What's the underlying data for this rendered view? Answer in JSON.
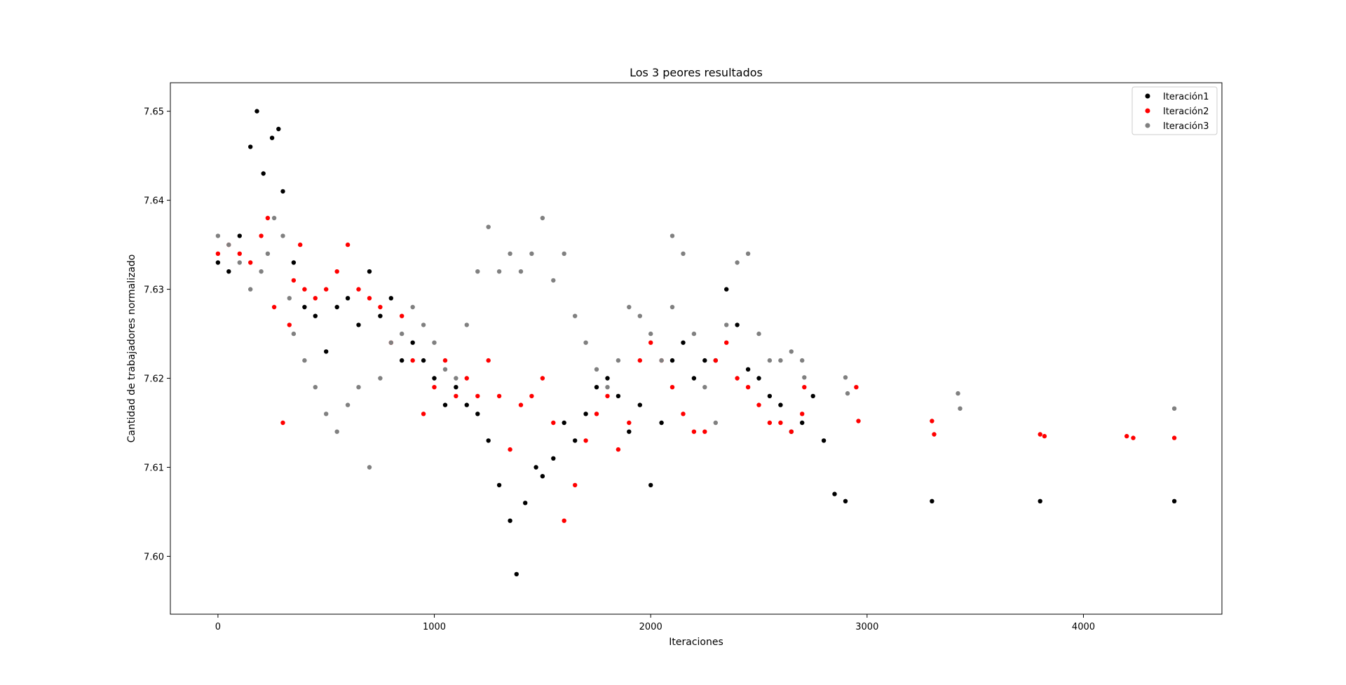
{
  "chart_data": {
    "type": "scatter",
    "title": "Los 3 peores resultados",
    "xlabel": "Iteraciones",
    "ylabel": "Cantidad de trabajadores normalizado",
    "xlim": [
      -220,
      4640
    ],
    "ylim": [
      7.5935,
      7.6532
    ],
    "xticks": [
      0,
      1000,
      2000,
      3000,
      4000
    ],
    "yticks": [
      7.6,
      7.61,
      7.62,
      7.63,
      7.64,
      7.65
    ],
    "xtick_labels": [
      "0",
      "1000",
      "2000",
      "3000",
      "4000"
    ],
    "ytick_labels": [
      "7.60",
      "7.61",
      "7.62",
      "7.63",
      "7.64",
      "7.65"
    ],
    "legend_position": "upper right",
    "grid": false,
    "series": [
      {
        "name": "Iteración1",
        "color": "#000000",
        "points": [
          [
            0,
            7.633
          ],
          [
            50,
            7.632
          ],
          [
            100,
            7.636
          ],
          [
            150,
            7.646
          ],
          [
            180,
            7.65
          ],
          [
            210,
            7.643
          ],
          [
            250,
            7.647
          ],
          [
            280,
            7.648
          ],
          [
            300,
            7.641
          ],
          [
            350,
            7.633
          ],
          [
            400,
            7.628
          ],
          [
            450,
            7.627
          ],
          [
            500,
            7.623
          ],
          [
            550,
            7.628
          ],
          [
            600,
            7.629
          ],
          [
            650,
            7.626
          ],
          [
            700,
            7.632
          ],
          [
            750,
            7.627
          ],
          [
            800,
            7.629
          ],
          [
            850,
            7.622
          ],
          [
            900,
            7.624
          ],
          [
            950,
            7.622
          ],
          [
            1000,
            7.62
          ],
          [
            1050,
            7.617
          ],
          [
            1100,
            7.619
          ],
          [
            1150,
            7.617
          ],
          [
            1200,
            7.616
          ],
          [
            1250,
            7.613
          ],
          [
            1300,
            7.608
          ],
          [
            1350,
            7.604
          ],
          [
            1380,
            7.598
          ],
          [
            1420,
            7.606
          ],
          [
            1470,
            7.61
          ],
          [
            1500,
            7.609
          ],
          [
            1550,
            7.611
          ],
          [
            1600,
            7.615
          ],
          [
            1650,
            7.613
          ],
          [
            1700,
            7.616
          ],
          [
            1750,
            7.619
          ],
          [
            1800,
            7.62
          ],
          [
            1850,
            7.618
          ],
          [
            1900,
            7.614
          ],
          [
            1950,
            7.617
          ],
          [
            2000,
            7.608
          ],
          [
            2050,
            7.615
          ],
          [
            2100,
            7.622
          ],
          [
            2150,
            7.624
          ],
          [
            2200,
            7.62
          ],
          [
            2250,
            7.622
          ],
          [
            2300,
            7.622
          ],
          [
            2350,
            7.63
          ],
          [
            2400,
            7.626
          ],
          [
            2450,
            7.621
          ],
          [
            2500,
            7.62
          ],
          [
            2550,
            7.618
          ],
          [
            2600,
            7.617
          ],
          [
            2650,
            7.614
          ],
          [
            2700,
            7.615
          ],
          [
            2750,
            7.618
          ],
          [
            2800,
            7.613
          ],
          [
            2850,
            7.607
          ],
          [
            2900,
            7.6062
          ],
          [
            3300,
            7.6062
          ],
          [
            3800,
            7.6062
          ],
          [
            4420,
            7.6062
          ]
        ]
      },
      {
        "name": "Iteración2",
        "color": "#ff0000",
        "points": [
          [
            0,
            7.634
          ],
          [
            50,
            7.635
          ],
          [
            100,
            7.634
          ],
          [
            150,
            7.633
          ],
          [
            200,
            7.636
          ],
          [
            230,
            7.638
          ],
          [
            260,
            7.628
          ],
          [
            300,
            7.615
          ],
          [
            330,
            7.626
          ],
          [
            350,
            7.631
          ],
          [
            380,
            7.635
          ],
          [
            400,
            7.63
          ],
          [
            450,
            7.629
          ],
          [
            500,
            7.63
          ],
          [
            550,
            7.632
          ],
          [
            600,
            7.635
          ],
          [
            650,
            7.63
          ],
          [
            700,
            7.629
          ],
          [
            750,
            7.628
          ],
          [
            800,
            7.624
          ],
          [
            850,
            7.627
          ],
          [
            900,
            7.622
          ],
          [
            950,
            7.616
          ],
          [
            1000,
            7.619
          ],
          [
            1050,
            7.622
          ],
          [
            1100,
            7.618
          ],
          [
            1150,
            7.62
          ],
          [
            1200,
            7.618
          ],
          [
            1250,
            7.622
          ],
          [
            1300,
            7.618
          ],
          [
            1350,
            7.612
          ],
          [
            1400,
            7.617
          ],
          [
            1450,
            7.618
          ],
          [
            1500,
            7.62
          ],
          [
            1550,
            7.615
          ],
          [
            1600,
            7.604
          ],
          [
            1650,
            7.608
          ],
          [
            1700,
            7.613
          ],
          [
            1750,
            7.616
          ],
          [
            1800,
            7.618
          ],
          [
            1850,
            7.612
          ],
          [
            1900,
            7.615
          ],
          [
            1950,
            7.622
          ],
          [
            2000,
            7.624
          ],
          [
            2050,
            7.622
          ],
          [
            2100,
            7.619
          ],
          [
            2150,
            7.616
          ],
          [
            2200,
            7.614
          ],
          [
            2250,
            7.614
          ],
          [
            2300,
            7.622
          ],
          [
            2350,
            7.624
          ],
          [
            2400,
            7.62
          ],
          [
            2450,
            7.619
          ],
          [
            2500,
            7.617
          ],
          [
            2550,
            7.615
          ],
          [
            2600,
            7.615
          ],
          [
            2650,
            7.614
          ],
          [
            2700,
            7.616
          ],
          [
            2710,
            7.619
          ],
          [
            2950,
            7.619
          ],
          [
            2960,
            7.6152
          ],
          [
            3300,
            7.6152
          ],
          [
            3310,
            7.6137
          ],
          [
            3800,
            7.6137
          ],
          [
            3820,
            7.6135
          ],
          [
            4200,
            7.6135
          ],
          [
            4230,
            7.6133
          ],
          [
            4420,
            7.6133
          ]
        ]
      },
      {
        "name": "Iteración3",
        "color": "#808080",
        "points": [
          [
            0,
            7.636
          ],
          [
            50,
            7.635
          ],
          [
            100,
            7.633
          ],
          [
            150,
            7.63
          ],
          [
            200,
            7.632
          ],
          [
            230,
            7.634
          ],
          [
            260,
            7.638
          ],
          [
            300,
            7.636
          ],
          [
            330,
            7.629
          ],
          [
            350,
            7.625
          ],
          [
            400,
            7.622
          ],
          [
            450,
            7.619
          ],
          [
            500,
            7.616
          ],
          [
            550,
            7.614
          ],
          [
            600,
            7.617
          ],
          [
            650,
            7.619
          ],
          [
            700,
            7.61
          ],
          [
            750,
            7.62
          ],
          [
            800,
            7.624
          ],
          [
            850,
            7.625
          ],
          [
            900,
            7.628
          ],
          [
            950,
            7.626
          ],
          [
            1000,
            7.624
          ],
          [
            1050,
            7.621
          ],
          [
            1100,
            7.62
          ],
          [
            1150,
            7.626
          ],
          [
            1200,
            7.632
          ],
          [
            1250,
            7.637
          ],
          [
            1300,
            7.632
          ],
          [
            1350,
            7.634
          ],
          [
            1400,
            7.632
          ],
          [
            1450,
            7.634
          ],
          [
            1500,
            7.638
          ],
          [
            1550,
            7.631
          ],
          [
            1600,
            7.634
          ],
          [
            1650,
            7.627
          ],
          [
            1700,
            7.624
          ],
          [
            1750,
            7.621
          ],
          [
            1800,
            7.619
          ],
          [
            1850,
            7.622
          ],
          [
            1900,
            7.628
          ],
          [
            1950,
            7.627
          ],
          [
            2000,
            7.625
          ],
          [
            2050,
            7.622
          ],
          [
            2100,
            7.628
          ],
          [
            2100,
            7.636
          ],
          [
            2150,
            7.634
          ],
          [
            2200,
            7.625
          ],
          [
            2250,
            7.619
          ],
          [
            2300,
            7.615
          ],
          [
            2350,
            7.626
          ],
          [
            2400,
            7.633
          ],
          [
            2450,
            7.634
          ],
          [
            2500,
            7.625
          ],
          [
            2550,
            7.622
          ],
          [
            2600,
            7.622
          ],
          [
            2650,
            7.623
          ],
          [
            2700,
            7.622
          ],
          [
            2710,
            7.6201
          ],
          [
            2900,
            7.6201
          ],
          [
            2910,
            7.6183
          ],
          [
            3420,
            7.6183
          ],
          [
            3430,
            7.6166
          ],
          [
            4420,
            7.6166
          ]
        ]
      }
    ]
  }
}
